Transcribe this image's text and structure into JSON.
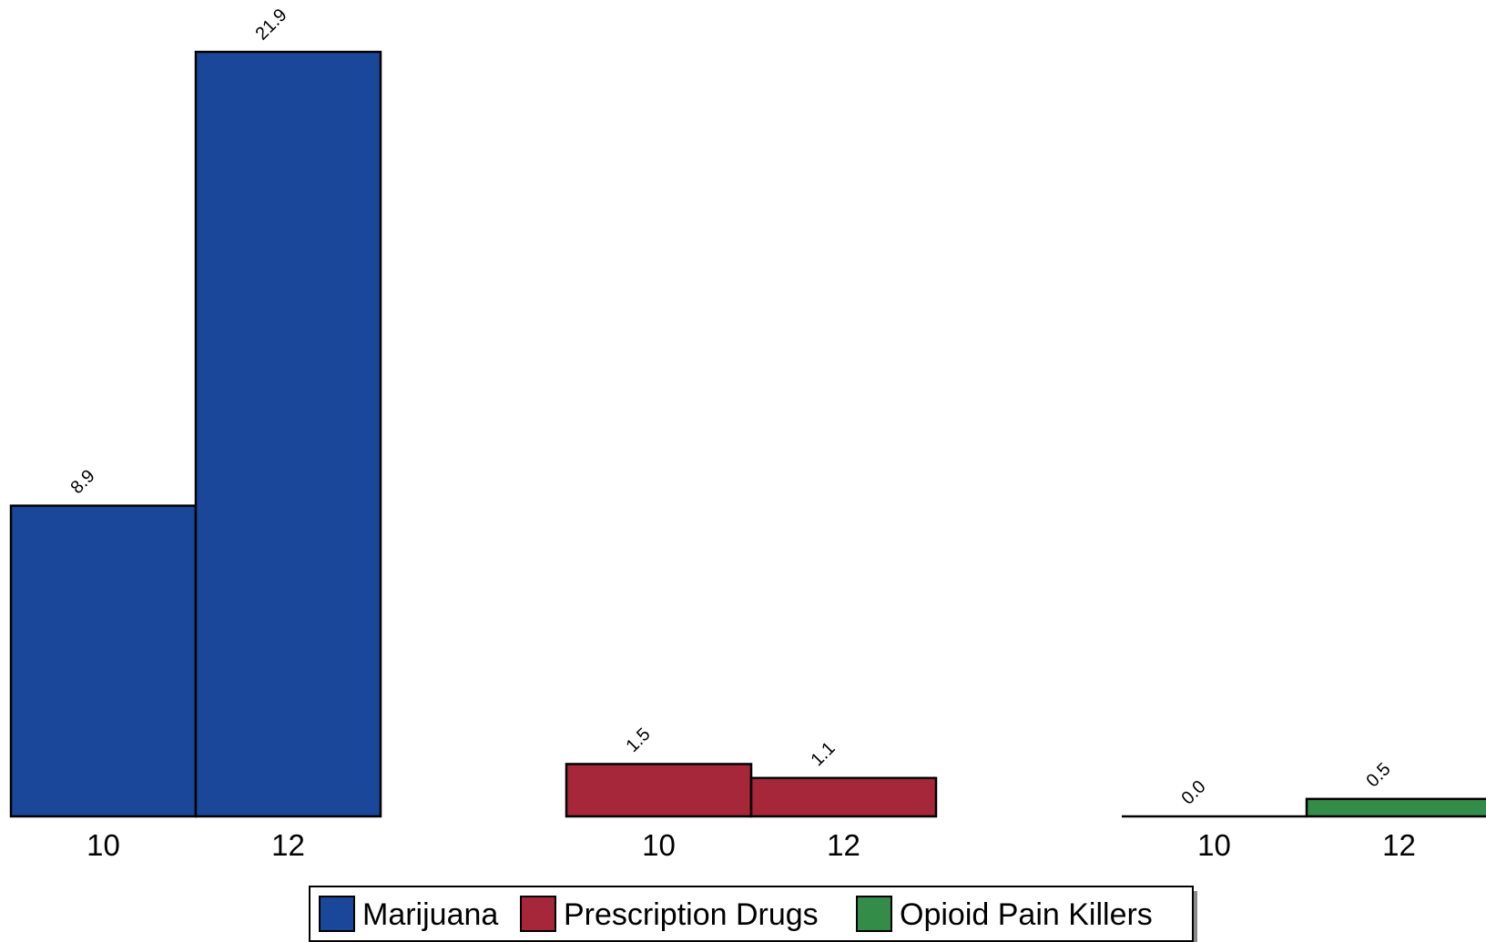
{
  "chart_data": {
    "type": "bar",
    "groups": [
      {
        "name": "Marijuana",
        "color": "#1a4799",
        "bars": [
          {
            "category": "10",
            "value": 8.9,
            "label": "8.9"
          },
          {
            "category": "12",
            "value": 21.9,
            "label": "21.9"
          }
        ]
      },
      {
        "name": "Prescription Drugs",
        "color": "#a6263a",
        "bars": [
          {
            "category": "10",
            "value": 1.5,
            "label": "1.5"
          },
          {
            "category": "12",
            "value": 1.1,
            "label": "1.1"
          }
        ]
      },
      {
        "name": "Opioid Pain Killers",
        "color": "#338c47",
        "bars": [
          {
            "category": "10",
            "value": 0.0,
            "label": "0.0"
          },
          {
            "category": "12",
            "value": 0.5,
            "label": "0.5"
          }
        ]
      }
    ],
    "ylim": [
      0,
      21.9
    ],
    "grid": false,
    "legend": {
      "position": "bottom",
      "entries": [
        "Marijuana",
        "Prescription Drugs",
        "Opioid Pain Killers"
      ]
    },
    "title": "",
    "xlabel": "",
    "ylabel": ""
  }
}
